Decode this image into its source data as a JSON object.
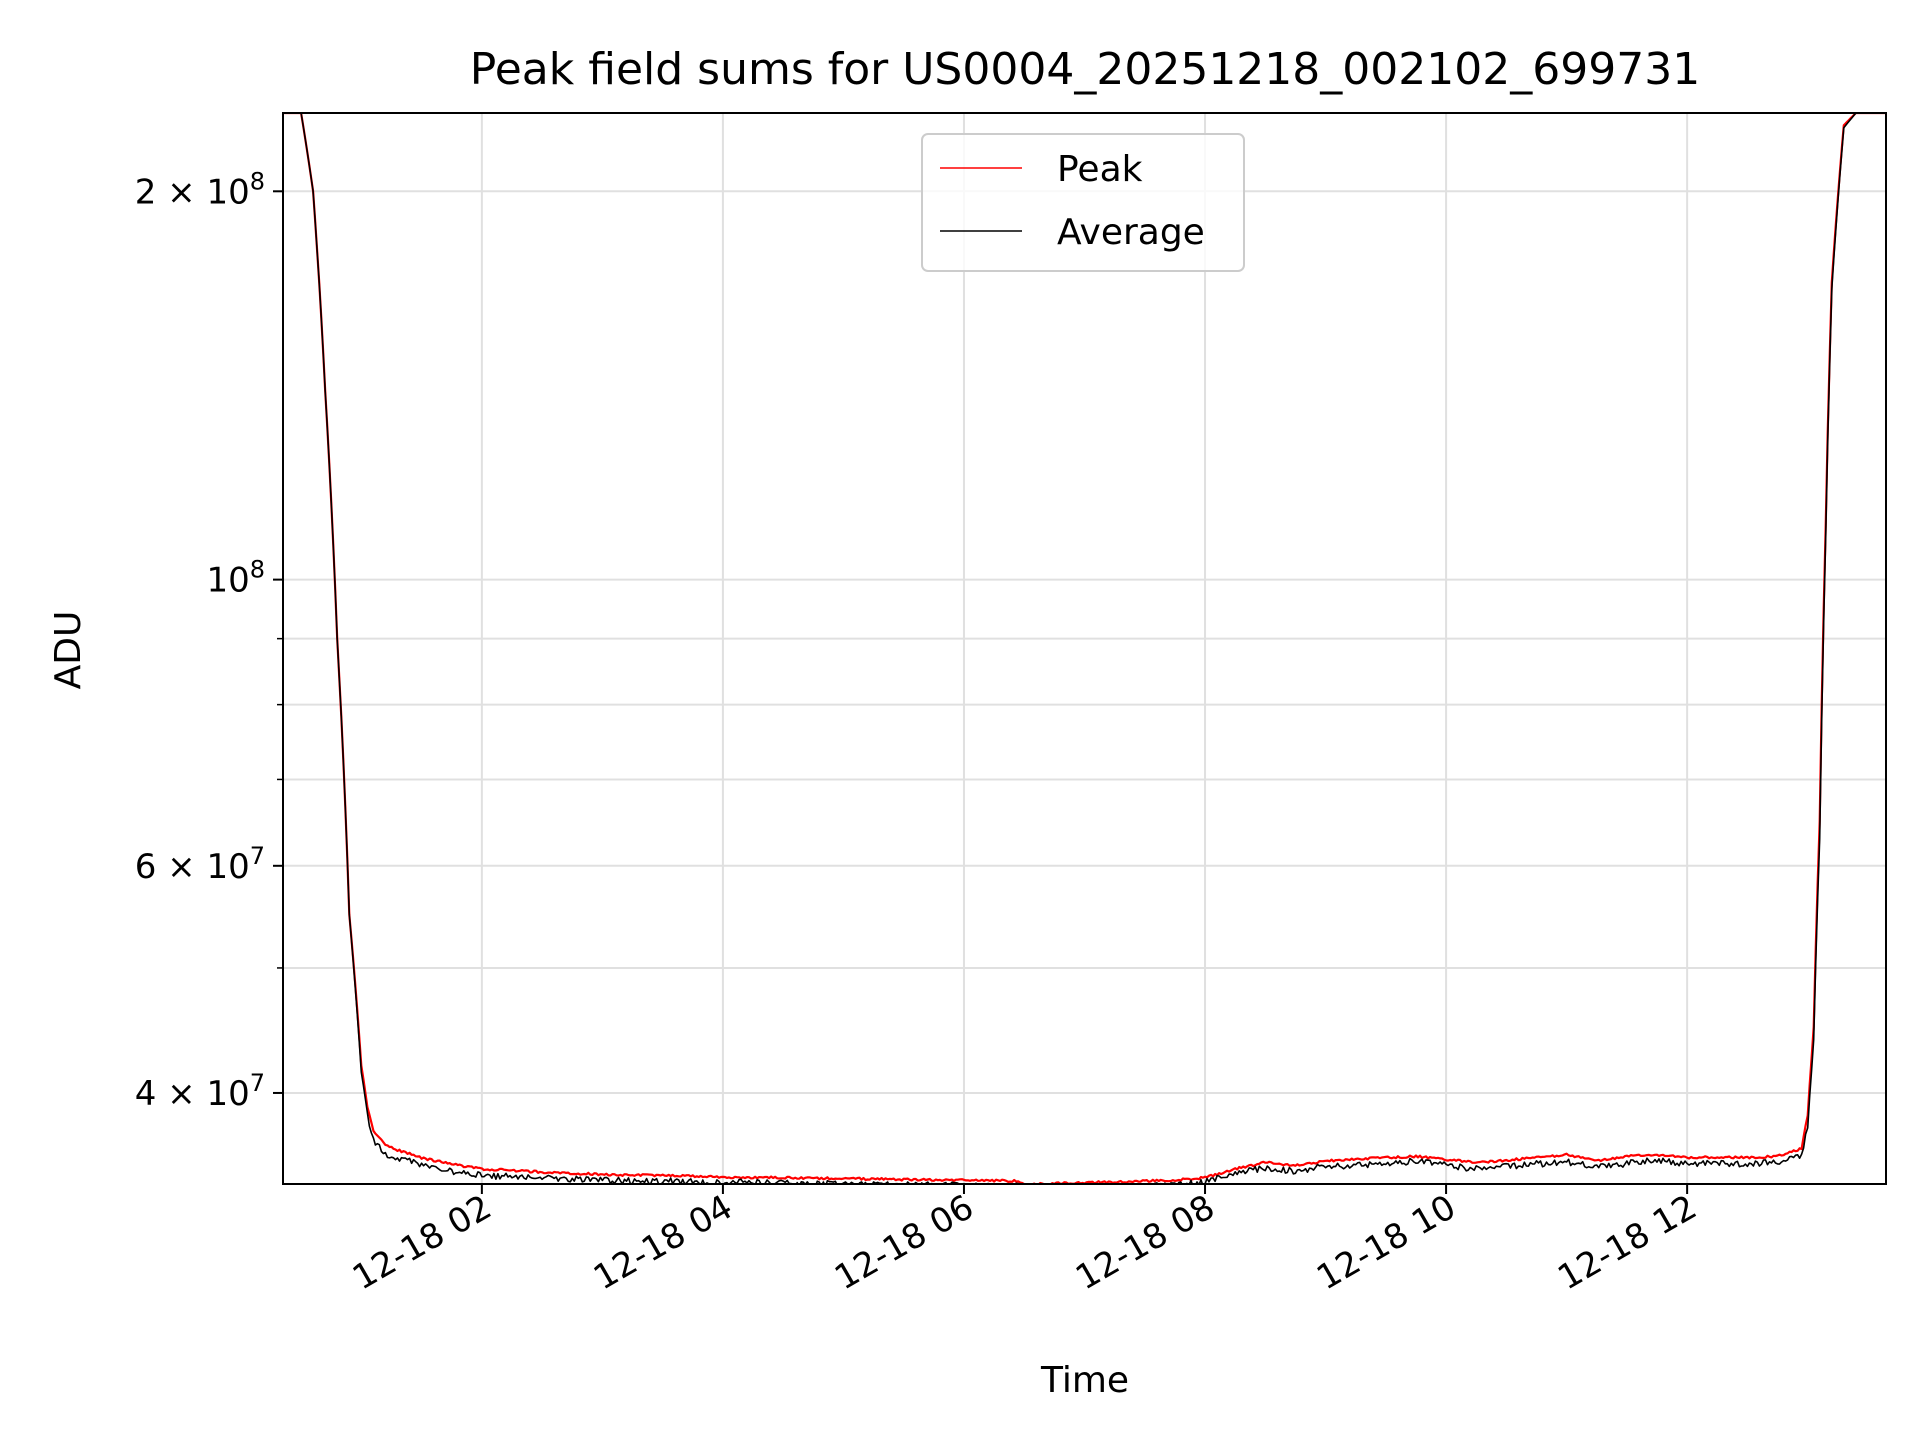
{
  "chart_data": {
    "type": "line",
    "title": "Peak field sums for US0004_20251218_002102_699731",
    "xlabel": "Time",
    "ylabel": "ADU",
    "y_scale": "log",
    "ylim": [
      34000000,
      230000000
    ],
    "xlim_hours": [
      0.35,
      13.65
    ],
    "x_unit": "hours since 2025-12-18 00:00",
    "grid": true,
    "x_ticks": [
      {
        "value": 2,
        "label": "12-18 02"
      },
      {
        "value": 4,
        "label": "12-18 04"
      },
      {
        "value": 6,
        "label": "12-18 06"
      },
      {
        "value": 8,
        "label": "12-18 08"
      },
      {
        "value": 10,
        "label": "12-18 10"
      },
      {
        "value": 12,
        "label": "12-18 12"
      }
    ],
    "y_major_ticks": [
      {
        "value": 40000000,
        "label": "4 × 10",
        "exp": "7"
      },
      {
        "value": 60000000,
        "label": "6 × 10",
        "exp": "7"
      },
      {
        "value": 100000000,
        "label": "10",
        "exp": "8"
      },
      {
        "value": 200000000,
        "label": "2 × 10",
        "exp": "8"
      }
    ],
    "y_minor_ticks": [
      50000000,
      70000000,
      80000000,
      90000000
    ],
    "legend": {
      "position": "top-center",
      "entries": [
        "Peak",
        "Average"
      ]
    },
    "series": [
      {
        "name": "Peak",
        "color": "#ff0000",
        "x": [
          0.35,
          0.5,
          0.6,
          0.7,
          0.8,
          0.9,
          1.0,
          1.05,
          1.1,
          1.2,
          1.3,
          1.5,
          1.75,
          2.0,
          2.5,
          3.0,
          3.5,
          4.0,
          4.5,
          5.0,
          5.5,
          6.0,
          6.45,
          6.5,
          6.75,
          7.0,
          7.25,
          7.5,
          7.75,
          8.0,
          8.25,
          8.5,
          8.75,
          9.0,
          9.25,
          9.5,
          9.75,
          10.0,
          10.25,
          10.5,
          10.75,
          11.0,
          11.25,
          11.5,
          11.75,
          12.0,
          12.25,
          12.5,
          12.75,
          12.95,
          13.0,
          13.05,
          13.1,
          13.15,
          13.2,
          13.3,
          13.4,
          13.5,
          13.65
        ],
        "y": [
          230000000,
          230000000,
          200000000,
          140000000,
          90000000,
          55000000,
          42000000,
          39000000,
          37500000,
          36500000,
          36200000,
          35700000,
          35300000,
          35000000,
          34800000,
          34650000,
          34600000,
          34500000,
          34450000,
          34400000,
          34350000,
          34300000,
          34250000,
          34050000,
          34100000,
          34150000,
          34200000,
          34250000,
          34300000,
          34450000,
          35000000,
          35400000,
          35200000,
          35500000,
          35600000,
          35700000,
          35800000,
          35600000,
          35400000,
          35550000,
          35700000,
          35900000,
          35500000,
          35800000,
          35900000,
          35700000,
          35750000,
          35700000,
          35800000,
          36300000,
          38500000,
          45000000,
          65000000,
          110000000,
          170000000,
          225000000,
          230000000,
          230000000,
          230000000
        ]
      },
      {
        "name": "Average",
        "color": "#000000",
        "x": [
          0.35,
          0.5,
          0.6,
          0.7,
          0.8,
          0.9,
          1.0,
          1.05,
          1.1,
          1.2,
          1.3,
          1.5,
          1.75,
          2.0,
          2.5,
          3.0,
          3.5,
          4.0,
          4.5,
          5.0,
          5.5,
          6.0,
          6.45,
          6.5,
          6.75,
          7.0,
          7.25,
          7.5,
          7.75,
          8.0,
          8.25,
          8.5,
          8.75,
          9.0,
          9.25,
          9.5,
          9.75,
          10.0,
          10.25,
          10.5,
          10.75,
          11.0,
          11.25,
          11.5,
          11.75,
          12.0,
          12.25,
          12.5,
          12.75,
          12.95,
          13.0,
          13.05,
          13.1,
          13.15,
          13.2,
          13.3,
          13.4,
          13.5,
          13.65
        ],
        "y": [
          230000000,
          230000000,
          200000000,
          140000000,
          90000000,
          55000000,
          41500000,
          38600000,
          37000000,
          36100000,
          35800000,
          35400000,
          35000000,
          34750000,
          34550000,
          34420000,
          34380000,
          34300000,
          34250000,
          34200000,
          34150000,
          34100000,
          34080000,
          33900000,
          33950000,
          34000000,
          34050000,
          34100000,
          34150000,
          34300000,
          34850000,
          35200000,
          35000000,
          35300000,
          35400000,
          35500000,
          35600000,
          35350000,
          35150000,
          35300000,
          35450000,
          35600000,
          35200000,
          35500000,
          35650000,
          35450000,
          35500000,
          35450000,
          35550000,
          36000000,
          38000000,
          44000000,
          63000000,
          108000000,
          168000000,
          224000000,
          230000000,
          230000000,
          230000000
        ]
      }
    ]
  }
}
